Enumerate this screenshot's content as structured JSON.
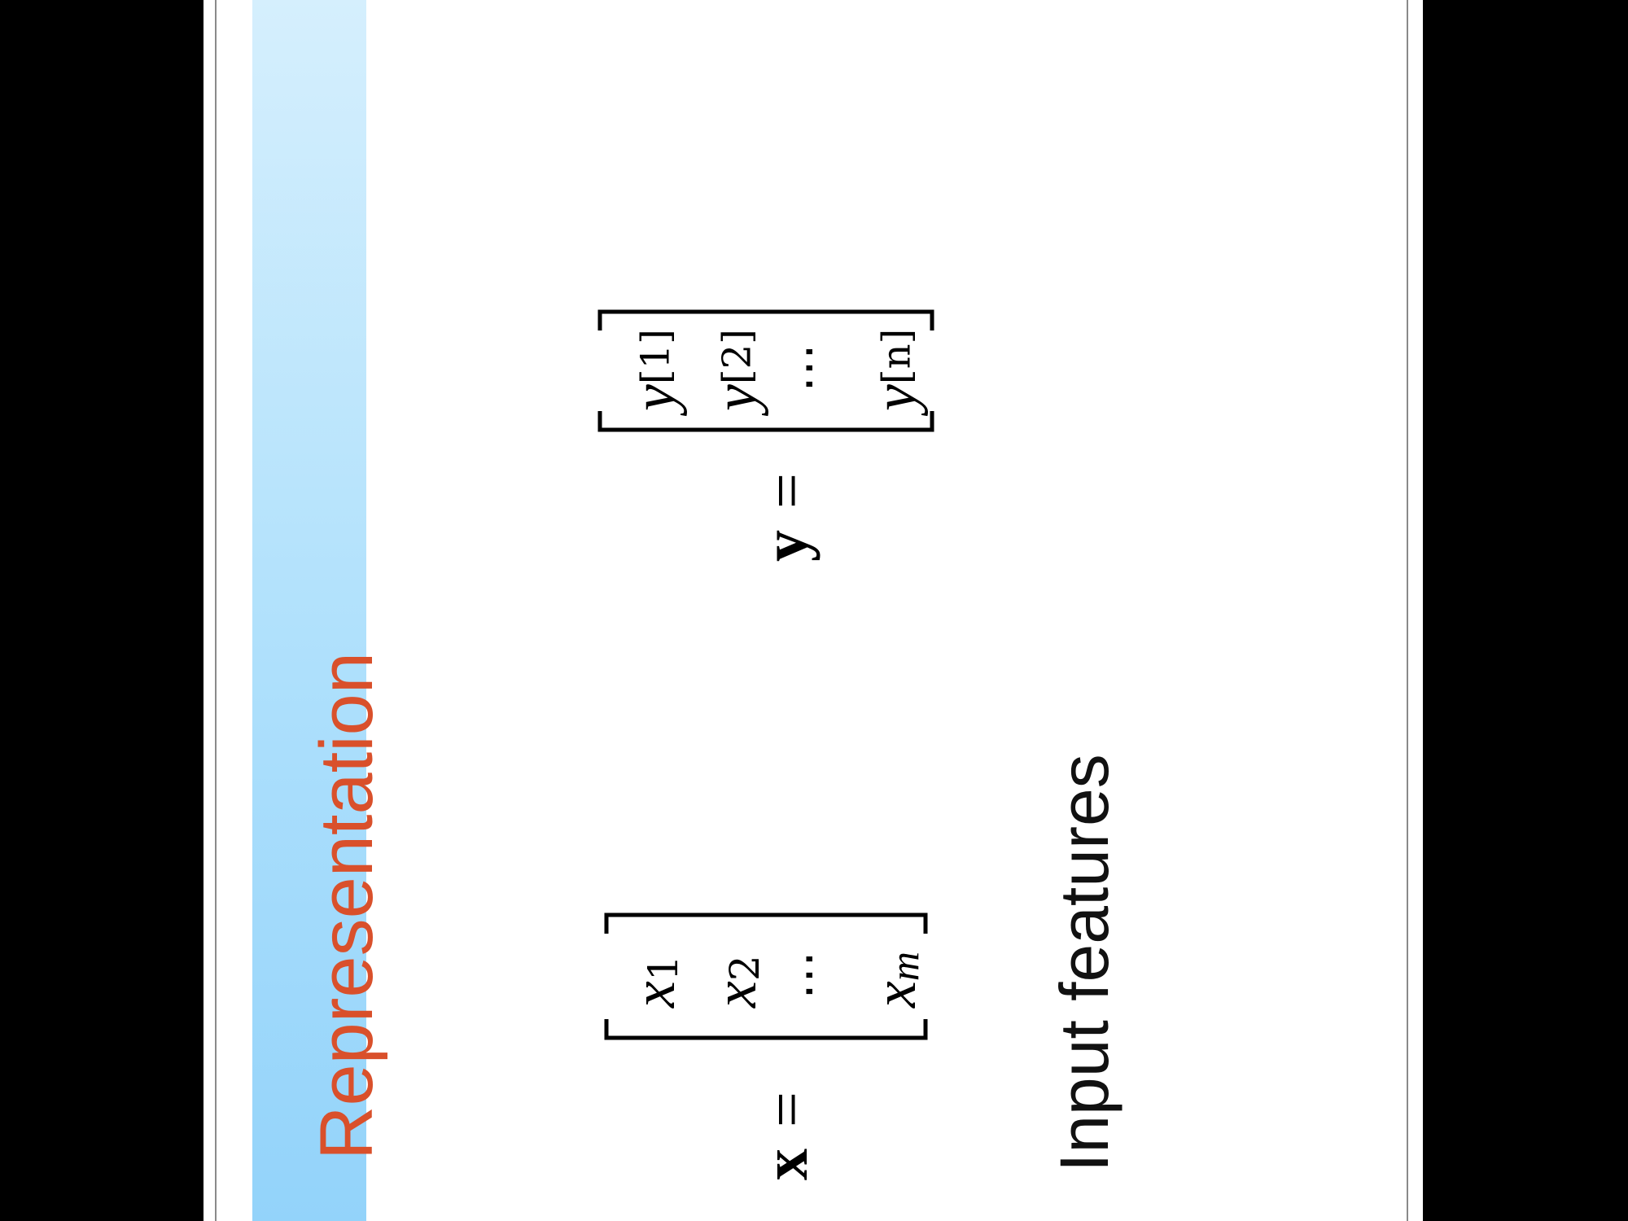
{
  "slide": {
    "title": "Representation",
    "title_color": "#d9502b",
    "x_equation": {
      "lhs": "x",
      "equals": "=",
      "entries": [
        {
          "base": "x",
          "sub": "1"
        },
        {
          "base": "x",
          "sub": "2"
        },
        {
          "base": "⋯",
          "sub": ""
        },
        {
          "base": "x",
          "sub": "m"
        }
      ]
    },
    "y_equation": {
      "lhs": "y",
      "equals": "=",
      "entries": [
        {
          "base": "y",
          "sup": "[1]"
        },
        {
          "base": "y",
          "sup": "[2]"
        },
        {
          "base": "⋯",
          "sup": ""
        },
        {
          "base": "y",
          "sup": "[n]"
        }
      ]
    },
    "caption": "Input features"
  }
}
